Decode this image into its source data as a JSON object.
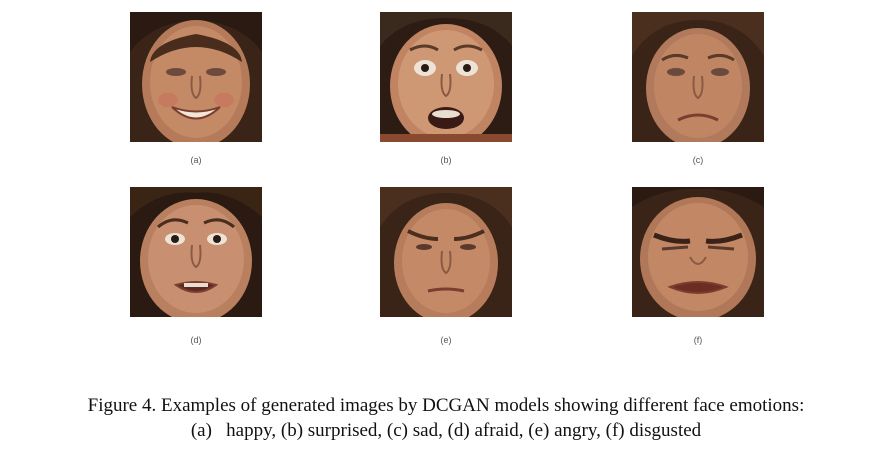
{
  "figure": {
    "panels": [
      {
        "label": "(a)",
        "emotion": "happy"
      },
      {
        "label": "(b)",
        "emotion": "surprised"
      },
      {
        "label": "(c)",
        "emotion": "sad"
      },
      {
        "label": "(d)",
        "emotion": "afraid"
      },
      {
        "label": "(e)",
        "emotion": "angry"
      },
      {
        "label": "(f)",
        "emotion": "disgusted"
      }
    ],
    "caption_line1": "Figure 4. Examples of generated images by DCGAN models showing different face emotions:",
    "caption_line2": "(a)   happy, (b) surprised, (c) sad, (d) afraid, (e) angry, (f) disgusted"
  }
}
